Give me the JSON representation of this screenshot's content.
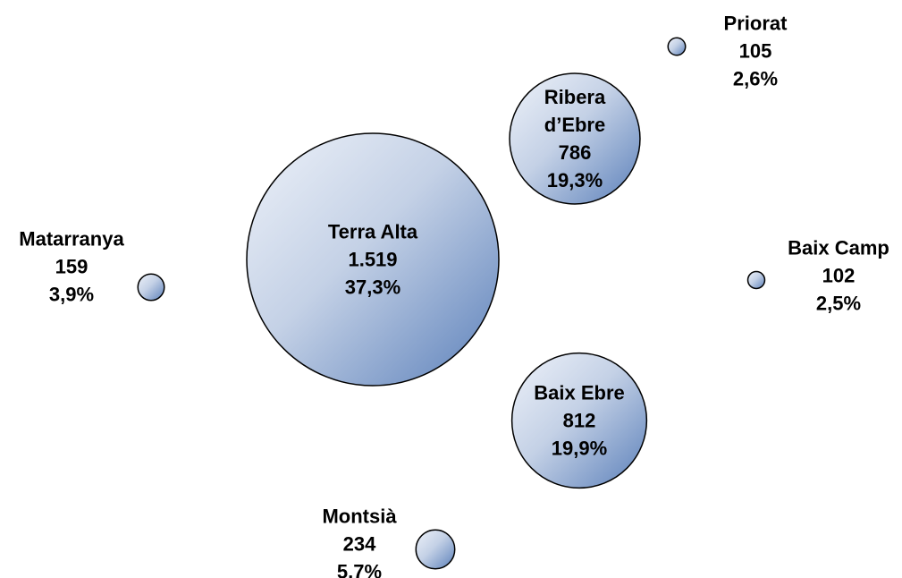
{
  "chart_data": {
    "type": "bubble",
    "categories": [
      "Terra Alta",
      "Baix Ebre",
      "Ribera d’Ebre",
      "Montsià",
      "Matarranya",
      "Priorat",
      "Baix Camp"
    ],
    "values": [
      1519,
      812,
      786,
      234,
      159,
      105,
      102
    ],
    "value_labels": [
      "1.519",
      "812",
      "786",
      "234",
      "159",
      "105",
      "102"
    ],
    "percentages": [
      37.3,
      19.9,
      19.3,
      5.7,
      3.9,
      2.6,
      2.5
    ],
    "percentage_labels": [
      "37,3%",
      "19,9%",
      "19,3%",
      "5,7%",
      "3,9%",
      "2,6%",
      "2,5%"
    ],
    "color": "#5b80ba"
  }
}
